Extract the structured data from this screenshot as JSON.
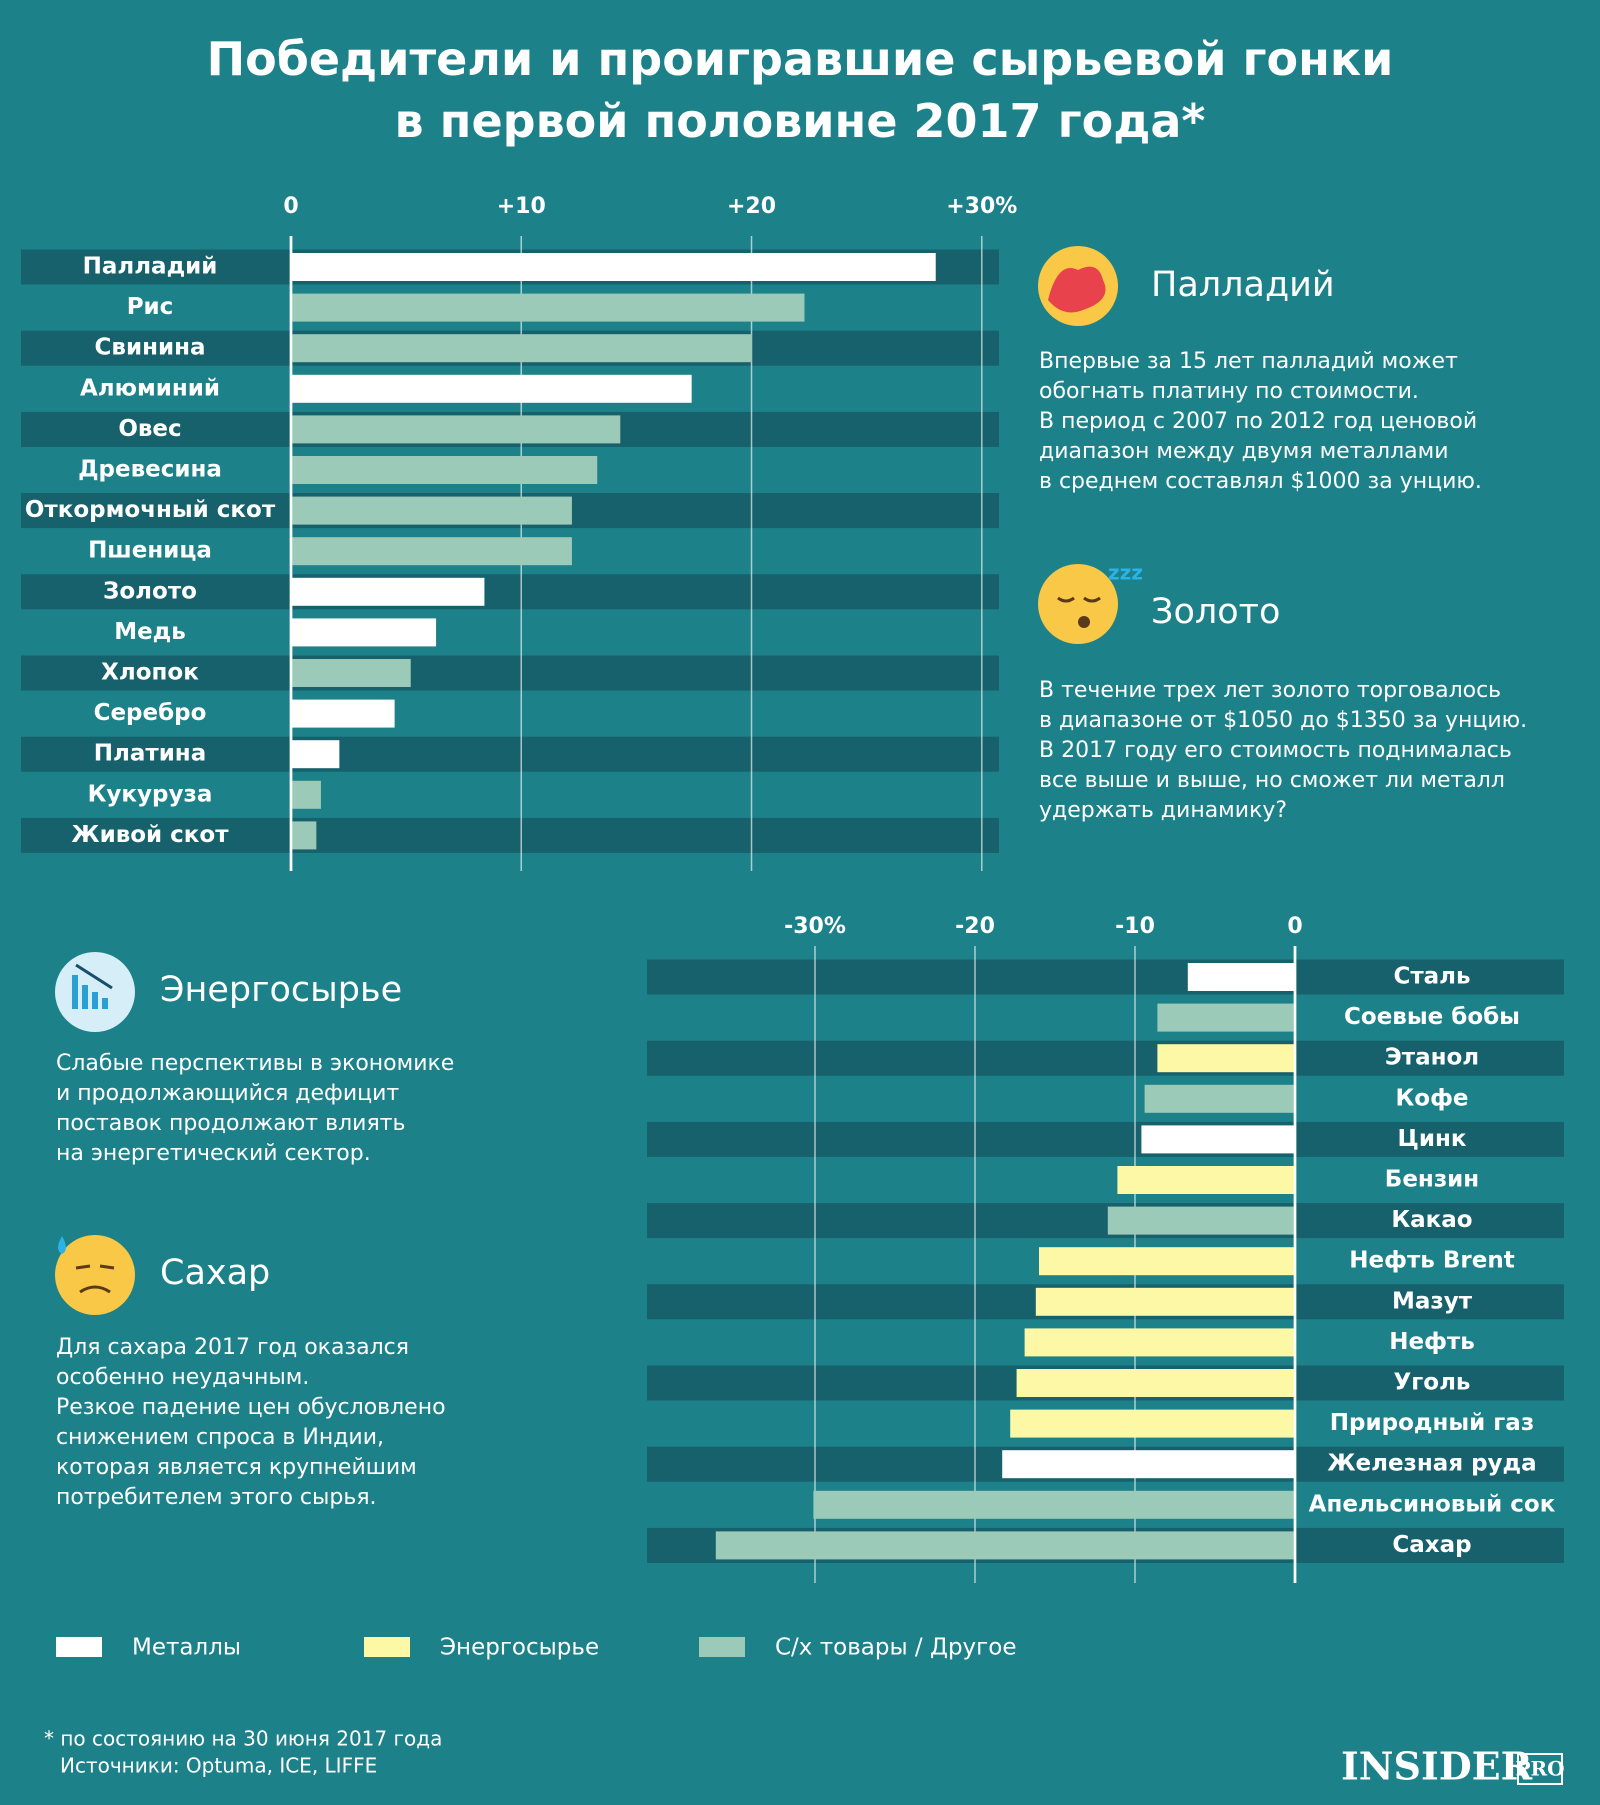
{
  "header": {
    "title": [
      "Победители и проигравшие сырьевой гонки",
      "в первой половине 2017 года*"
    ]
  },
  "chart_data": [
    {
      "type": "bar",
      "orientation": "horizontal",
      "categories": [
        "Палладий",
        "Рис",
        "Свинина",
        "Алюминий",
        "Овес",
        "Древесина",
        "Откормочный скот",
        "Пшеница",
        "Золото",
        "Медь",
        "Хлопок",
        "Серебро",
        "Платина",
        "Кукуруза",
        "Живой скот"
      ],
      "values": [
        28.0,
        22.3,
        20.0,
        17.4,
        14.3,
        13.3,
        12.2,
        12.2,
        8.4,
        6.3,
        5.2,
        4.5,
        2.1,
        1.3,
        1.1
      ],
      "colors": [
        "#ffffff",
        "#9ccab8",
        "#9ccab8",
        "#ffffff",
        "#9ccab8",
        "#9ccab8",
        "#9ccab8",
        "#9ccab8",
        "#ffffff",
        "#ffffff",
        "#9ccab8",
        "#ffffff",
        "#ffffff",
        "#9ccab8",
        "#9ccab8"
      ],
      "xlim": [
        0,
        30.4
      ],
      "xticks": [
        0,
        {
          "value": 10,
          "label": "+10"
        },
        {
          "value": 20,
          "label": "+20"
        },
        {
          "value": 30,
          "label": "+30%"
        }
      ],
      "grid": true
    },
    {
      "type": "bar",
      "orientation": "horizontal",
      "categories": [
        "Сталь",
        "Соевые бобы",
        "Этанол",
        "Кофе",
        "Цинк",
        "Бензин",
        "Какао",
        "Нефть Brent",
        "Мазут",
        "Нефть",
        "Уголь",
        "Природный газ",
        "Железная руда",
        "Апельсиновый сок",
        "Сахар"
      ],
      "values": [
        -6.7,
        -8.6,
        -8.6,
        -9.4,
        -9.6,
        -11.1,
        -11.7,
        -16.0,
        -16.2,
        -16.9,
        -17.4,
        -17.8,
        -18.3,
        -30.1,
        -36.2
      ],
      "colors": [
        "#ffffff",
        "#9ccab8",
        "#fdf8a6",
        "#9ccab8",
        "#ffffff",
        "#fdf8a6",
        "#9ccab8",
        "#fdf8a6",
        "#fdf8a6",
        "#fdf8a6",
        "#fdf8a6",
        "#fdf8a6",
        "#ffffff",
        "#9ccab8",
        "#9ccab8"
      ],
      "xlim": [
        -40.5,
        0
      ],
      "xticks": [
        {
          "value": -30,
          "label": "-30%"
        },
        -20,
        -10,
        0
      ],
      "grid": true
    }
  ],
  "notes": [
    {
      "heading": "Палладий",
      "lines": [
        "Впервые за 15 лет палладий может",
        "обогнать платину по стоимости.",
        "В период с 2007 по 2012 год ценовой",
        "диапазон между двумя металлами",
        "в среднем составлял $1000 за унцию."
      ]
    },
    {
      "heading": "Золото",
      "lines": [
        "В течение трех лет золото торговалось",
        "в диапазоне от $1050 до $1350 за унцию.",
        "В 2017 году его стоимость поднималась",
        "все выше и выше, но сможет ли металл",
        "удержать динамику?"
      ]
    },
    {
      "heading": "Энергосырье",
      "lines": [
        "Слабые перспективы в экономике",
        "и продолжающийся дефицит",
        "поставок продолжают влиять",
        "на энергетический сектор."
      ]
    },
    {
      "heading": "Сахар",
      "lines": [
        "Для сахара 2017 год оказался",
        "особенно неудачным.",
        "Резкое падение цен обусловлено",
        "снижением спроса в Индии,",
        "которая является крупнейшим",
        "потребителем этого сырья."
      ]
    }
  ],
  "legend": [
    {
      "name": "Металлы",
      "color": "#ffffff"
    },
    {
      "name": "Энергосырье",
      "color": "#fdf8a6"
    },
    {
      "name": "С/х товары / Другое",
      "color": "#9ccab8"
    }
  ],
  "footnote": [
    "* по состоянию на 30 июня 2017 года",
    "Источники: Optuma, ICE, LIFFE"
  ],
  "logo": {
    "main": "INSIDER",
    "sub": "PRO"
  }
}
